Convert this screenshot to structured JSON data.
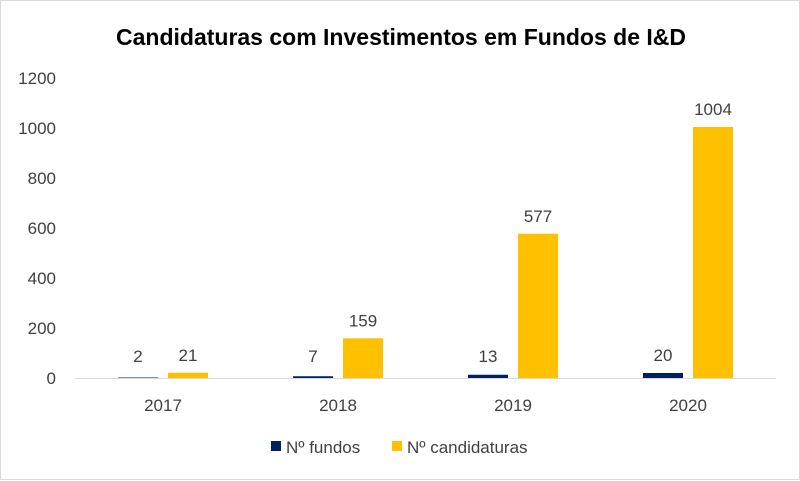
{
  "chart_data": {
    "type": "bar",
    "title": "Candidaturas com Investimentos em Fundos de I&D",
    "xlabel": "",
    "ylabel": "",
    "categories": [
      "2017",
      "2018",
      "2019",
      "2020"
    ],
    "series": [
      {
        "name": "Nº fundos",
        "values": [
          2,
          7,
          13,
          20
        ],
        "color": "#002060"
      },
      {
        "name": "Nº candidaturas",
        "values": [
          21,
          159,
          577,
          1004
        ],
        "color": "#FFC000"
      }
    ],
    "ylim": [
      0,
      1200
    ],
    "yticks": [
      0,
      200,
      400,
      600,
      800,
      1000,
      1200
    ],
    "grid": false,
    "legend": "bottom"
  }
}
